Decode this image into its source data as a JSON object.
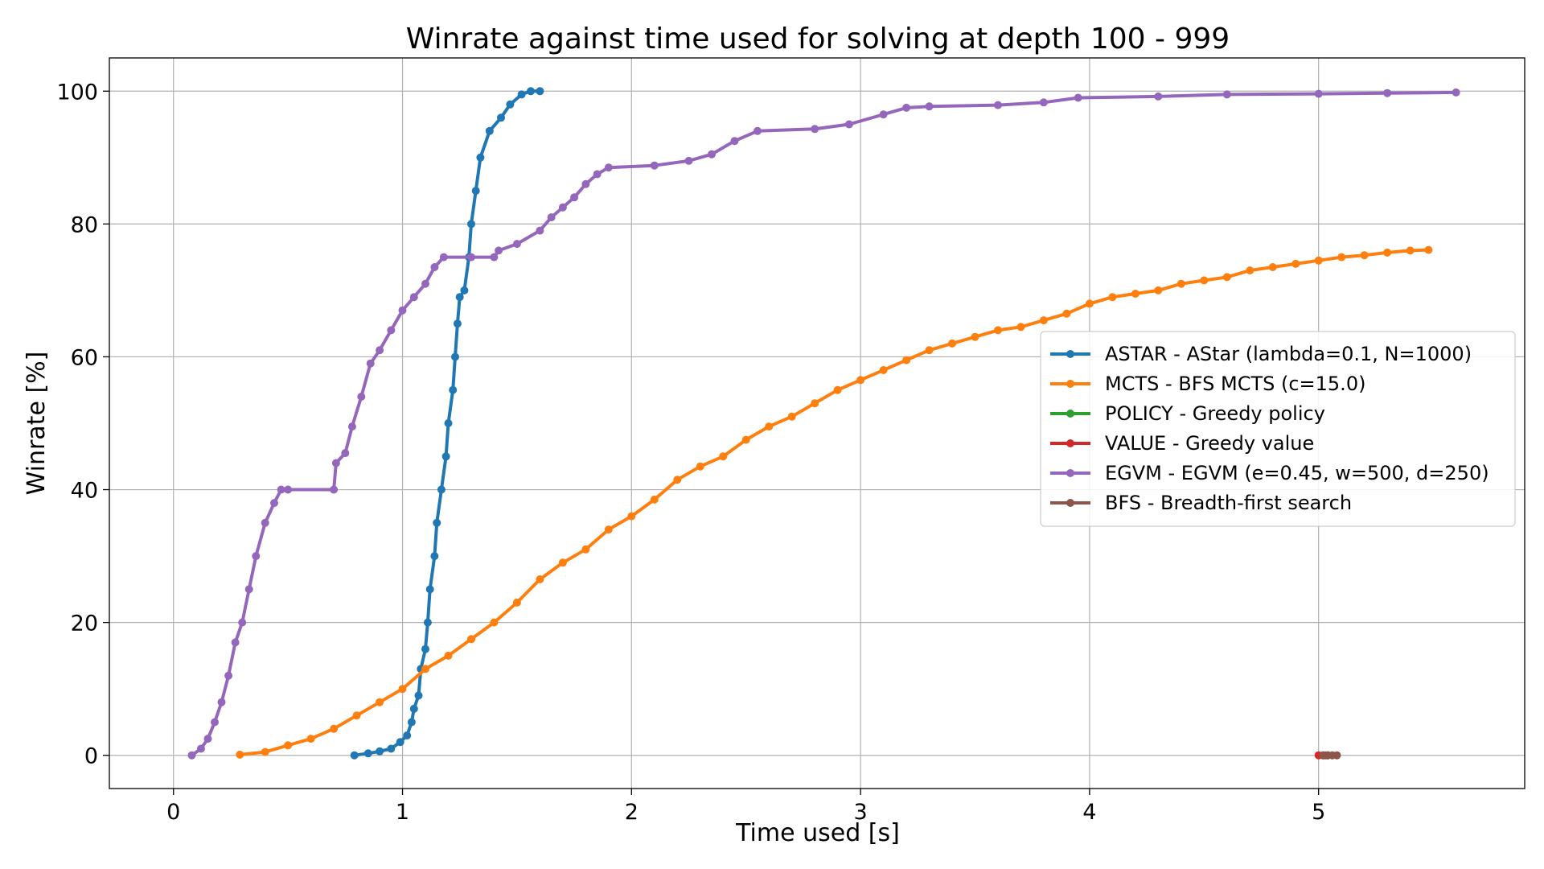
{
  "chart_data": {
    "type": "line",
    "title": "Winrate against time used for solving at depth 100 - 999",
    "xlabel": "Time used [s]",
    "ylabel": "Winrate [%]",
    "xlim": [
      -0.28,
      5.9
    ],
    "ylim": [
      -5,
      105
    ],
    "xticks": [
      "0",
      "1",
      "2",
      "3",
      "4",
      "5"
    ],
    "yticks": [
      "0",
      "20",
      "40",
      "60",
      "80",
      "100"
    ],
    "grid": true,
    "legend_position": "center-right",
    "series": [
      {
        "name": "ASTAR - AStar (lambda=0.1, N=1000)",
        "color": "#1f77b4",
        "points": [
          [
            0.79,
            0
          ],
          [
            0.85,
            0.3
          ],
          [
            0.9,
            0.6
          ],
          [
            0.95,
            1
          ],
          [
            0.99,
            2
          ],
          [
            1.02,
            3
          ],
          [
            1.04,
            5
          ],
          [
            1.05,
            7
          ],
          [
            1.07,
            9
          ],
          [
            1.08,
            13
          ],
          [
            1.1,
            16
          ],
          [
            1.11,
            20
          ],
          [
            1.12,
            25
          ],
          [
            1.14,
            30
          ],
          [
            1.15,
            35
          ],
          [
            1.17,
            40
          ],
          [
            1.19,
            45
          ],
          [
            1.2,
            50
          ],
          [
            1.22,
            55
          ],
          [
            1.23,
            60
          ],
          [
            1.24,
            65
          ],
          [
            1.25,
            69
          ],
          [
            1.27,
            70
          ],
          [
            1.29,
            75
          ],
          [
            1.3,
            80
          ],
          [
            1.32,
            85
          ],
          [
            1.34,
            90
          ],
          [
            1.38,
            94
          ],
          [
            1.43,
            96
          ],
          [
            1.47,
            98
          ],
          [
            1.52,
            99.5
          ],
          [
            1.56,
            100
          ],
          [
            1.6,
            100
          ]
        ]
      },
      {
        "name": "MCTS - BFS MCTS (c=15.0)",
        "color": "#ff7f0e",
        "points": [
          [
            0.29,
            0.1
          ],
          [
            0.4,
            0.5
          ],
          [
            0.5,
            1.5
          ],
          [
            0.6,
            2.5
          ],
          [
            0.7,
            4
          ],
          [
            0.8,
            6
          ],
          [
            0.9,
            8
          ],
          [
            1.0,
            10
          ],
          [
            1.1,
            13
          ],
          [
            1.2,
            15
          ],
          [
            1.3,
            17.5
          ],
          [
            1.4,
            20
          ],
          [
            1.5,
            23
          ],
          [
            1.6,
            26.5
          ],
          [
            1.7,
            29
          ],
          [
            1.8,
            31
          ],
          [
            1.9,
            34
          ],
          [
            2.0,
            36
          ],
          [
            2.1,
            38.5
          ],
          [
            2.2,
            41.5
          ],
          [
            2.3,
            43.5
          ],
          [
            2.4,
            45
          ],
          [
            2.5,
            47.5
          ],
          [
            2.6,
            49.5
          ],
          [
            2.7,
            51
          ],
          [
            2.8,
            53
          ],
          [
            2.9,
            55
          ],
          [
            3.0,
            56.5
          ],
          [
            3.1,
            58
          ],
          [
            3.2,
            59.5
          ],
          [
            3.3,
            61
          ],
          [
            3.4,
            62
          ],
          [
            3.5,
            63
          ],
          [
            3.6,
            64
          ],
          [
            3.7,
            64.5
          ],
          [
            3.8,
            65.5
          ],
          [
            3.9,
            66.5
          ],
          [
            4.0,
            68
          ],
          [
            4.1,
            69
          ],
          [
            4.2,
            69.5
          ],
          [
            4.3,
            70
          ],
          [
            4.4,
            71
          ],
          [
            4.5,
            71.5
          ],
          [
            4.6,
            72
          ],
          [
            4.7,
            73
          ],
          [
            4.8,
            73.5
          ],
          [
            4.9,
            74
          ],
          [
            5.0,
            74.5
          ],
          [
            5.1,
            75
          ],
          [
            5.2,
            75.3
          ],
          [
            5.3,
            75.7
          ],
          [
            5.4,
            76
          ],
          [
            5.48,
            76.1
          ]
        ]
      },
      {
        "name": "POLICY - Greedy policy",
        "color": "#2ca02c",
        "points": [
          [
            5.02,
            0
          ],
          [
            5.04,
            0
          ]
        ]
      },
      {
        "name": "VALUE - Greedy value",
        "color": "#d62728",
        "points": [
          [
            5.0,
            0
          ],
          [
            5.03,
            0
          ]
        ]
      },
      {
        "name": "EGVM - EGVM (e=0.45, w=500, d=250)",
        "color": "#9467bd",
        "points": [
          [
            0.08,
            0
          ],
          [
            0.12,
            1
          ],
          [
            0.15,
            2.5
          ],
          [
            0.18,
            5
          ],
          [
            0.21,
            8
          ],
          [
            0.24,
            12
          ],
          [
            0.27,
            17
          ],
          [
            0.3,
            20
          ],
          [
            0.33,
            25
          ],
          [
            0.36,
            30
          ],
          [
            0.4,
            35
          ],
          [
            0.44,
            38
          ],
          [
            0.47,
            40
          ],
          [
            0.5,
            40
          ],
          [
            0.7,
            40
          ],
          [
            0.71,
            44
          ],
          [
            0.75,
            45.5
          ],
          [
            0.78,
            49.5
          ],
          [
            0.82,
            54
          ],
          [
            0.86,
            59
          ],
          [
            0.9,
            61
          ],
          [
            0.95,
            64
          ],
          [
            1.0,
            67
          ],
          [
            1.05,
            69
          ],
          [
            1.1,
            71
          ],
          [
            1.14,
            73.5
          ],
          [
            1.18,
            75
          ],
          [
            1.3,
            75
          ],
          [
            1.4,
            75
          ],
          [
            1.42,
            76
          ],
          [
            1.5,
            77
          ],
          [
            1.6,
            79
          ],
          [
            1.65,
            81
          ],
          [
            1.7,
            82.5
          ],
          [
            1.75,
            84
          ],
          [
            1.8,
            86
          ],
          [
            1.85,
            87.5
          ],
          [
            1.9,
            88.5
          ],
          [
            2.1,
            88.8
          ],
          [
            2.25,
            89.5
          ],
          [
            2.35,
            90.5
          ],
          [
            2.45,
            92.5
          ],
          [
            2.55,
            94
          ],
          [
            2.8,
            94.3
          ],
          [
            2.95,
            95
          ],
          [
            3.1,
            96.5
          ],
          [
            3.2,
            97.5
          ],
          [
            3.3,
            97.7
          ],
          [
            3.6,
            97.9
          ],
          [
            3.8,
            98.3
          ],
          [
            3.95,
            99
          ],
          [
            4.3,
            99.2
          ],
          [
            4.6,
            99.5
          ],
          [
            5.0,
            99.6
          ],
          [
            5.3,
            99.7
          ],
          [
            5.6,
            99.8
          ]
        ]
      },
      {
        "name": "BFS - Breadth-first search",
        "color": "#8c564b",
        "points": [
          [
            5.02,
            0
          ],
          [
            5.04,
            0
          ],
          [
            5.06,
            0
          ],
          [
            5.08,
            0
          ]
        ]
      }
    ]
  }
}
